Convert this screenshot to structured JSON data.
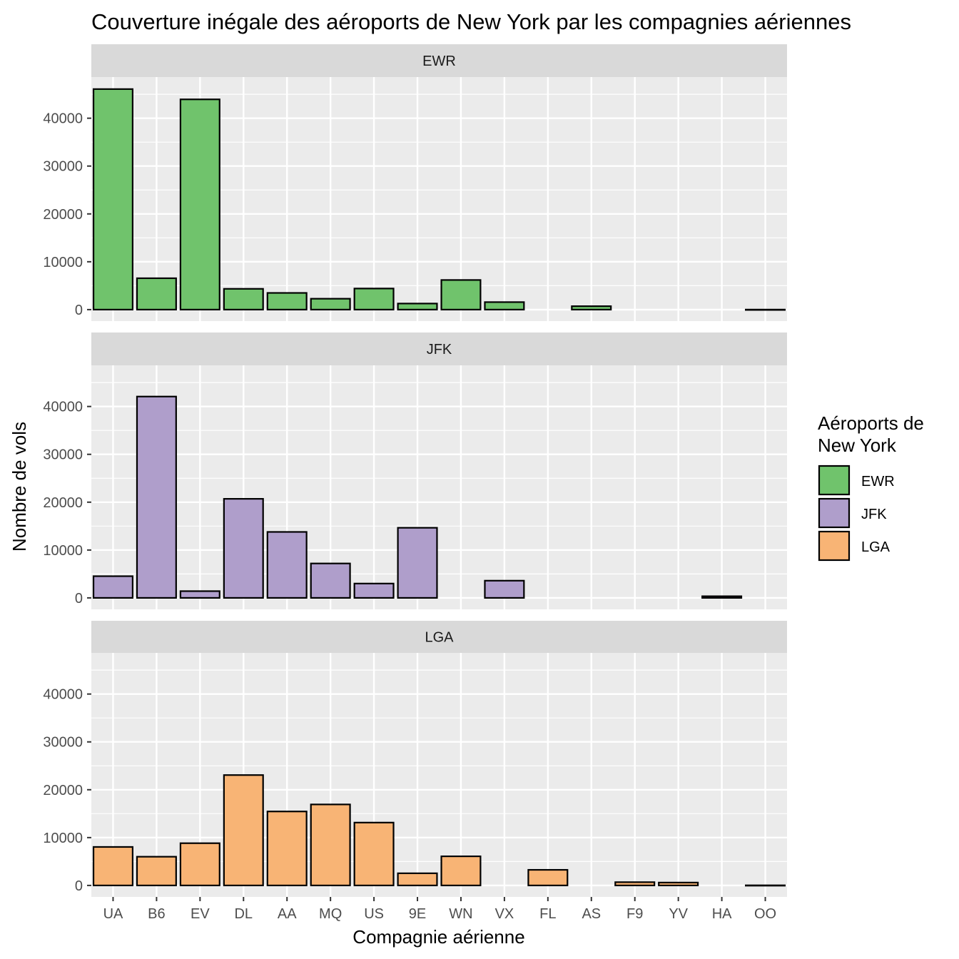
{
  "chart_data": {
    "type": "bar",
    "title": "Couverture inégale des aéroports de New York par les compagnies aériennes",
    "xlabel": "Compagnie aérienne",
    "ylabel": "Nombre de vols",
    "ylim": [
      0,
      48000
    ],
    "yticks": [
      0,
      10000,
      20000,
      30000,
      40000
    ],
    "grid": true,
    "facet": "vertical",
    "categories": [
      "UA",
      "B6",
      "EV",
      "DL",
      "AA",
      "MQ",
      "US",
      "9E",
      "WN",
      "VX",
      "FL",
      "AS",
      "F9",
      "YV",
      "HA",
      "OO"
    ],
    "legend": {
      "title_lines": [
        "Aéroports de",
        "New York"
      ],
      "position": "right",
      "entries": [
        {
          "label": "EWR",
          "color": "#70c36c"
        },
        {
          "label": "JFK",
          "color": "#af9ecb"
        },
        {
          "label": "LGA",
          "color": "#f8b475"
        }
      ]
    },
    "series": [
      {
        "name": "EWR",
        "color": "#70c36c",
        "values": [
          46087,
          6557,
          43939,
          4342,
          3487,
          2276,
          4405,
          1268,
          6188,
          1566,
          null,
          714,
          null,
          null,
          null,
          6
        ]
      },
      {
        "name": "JFK",
        "color": "#af9ecb",
        "values": [
          4534,
          42076,
          1408,
          20701,
          13783,
          7193,
          2995,
          14651,
          null,
          3596,
          null,
          null,
          null,
          null,
          342,
          null
        ]
      },
      {
        "name": "LGA",
        "color": "#f8b475",
        "values": [
          8044,
          6002,
          8826,
          23067,
          15459,
          16928,
          13136,
          2541,
          6087,
          null,
          3260,
          null,
          685,
          601,
          null,
          26
        ]
      }
    ]
  }
}
